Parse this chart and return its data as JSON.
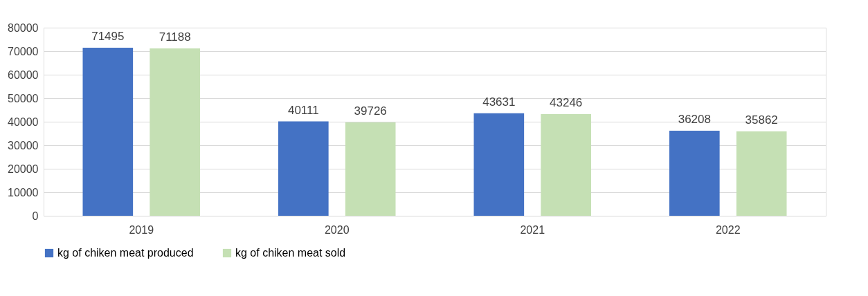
{
  "chart_data": {
    "type": "bar",
    "categories": [
      "2019",
      "2020",
      "2021",
      "2022"
    ],
    "series": [
      {
        "name": "kg of chiken meat produced",
        "color": "#4472c4",
        "values": [
          71495,
          40111,
          43631,
          36208
        ]
      },
      {
        "name": "kg of chiken meat sold",
        "color": "#c5e0b4",
        "values": [
          71188,
          39726,
          43246,
          35862
        ]
      }
    ],
    "ylim": [
      0,
      80000
    ],
    "yticks": [
      0,
      10000,
      20000,
      30000,
      40000,
      50000,
      60000,
      70000,
      80000
    ],
    "grid": "y",
    "legend": "bottom",
    "data_labels": true
  }
}
